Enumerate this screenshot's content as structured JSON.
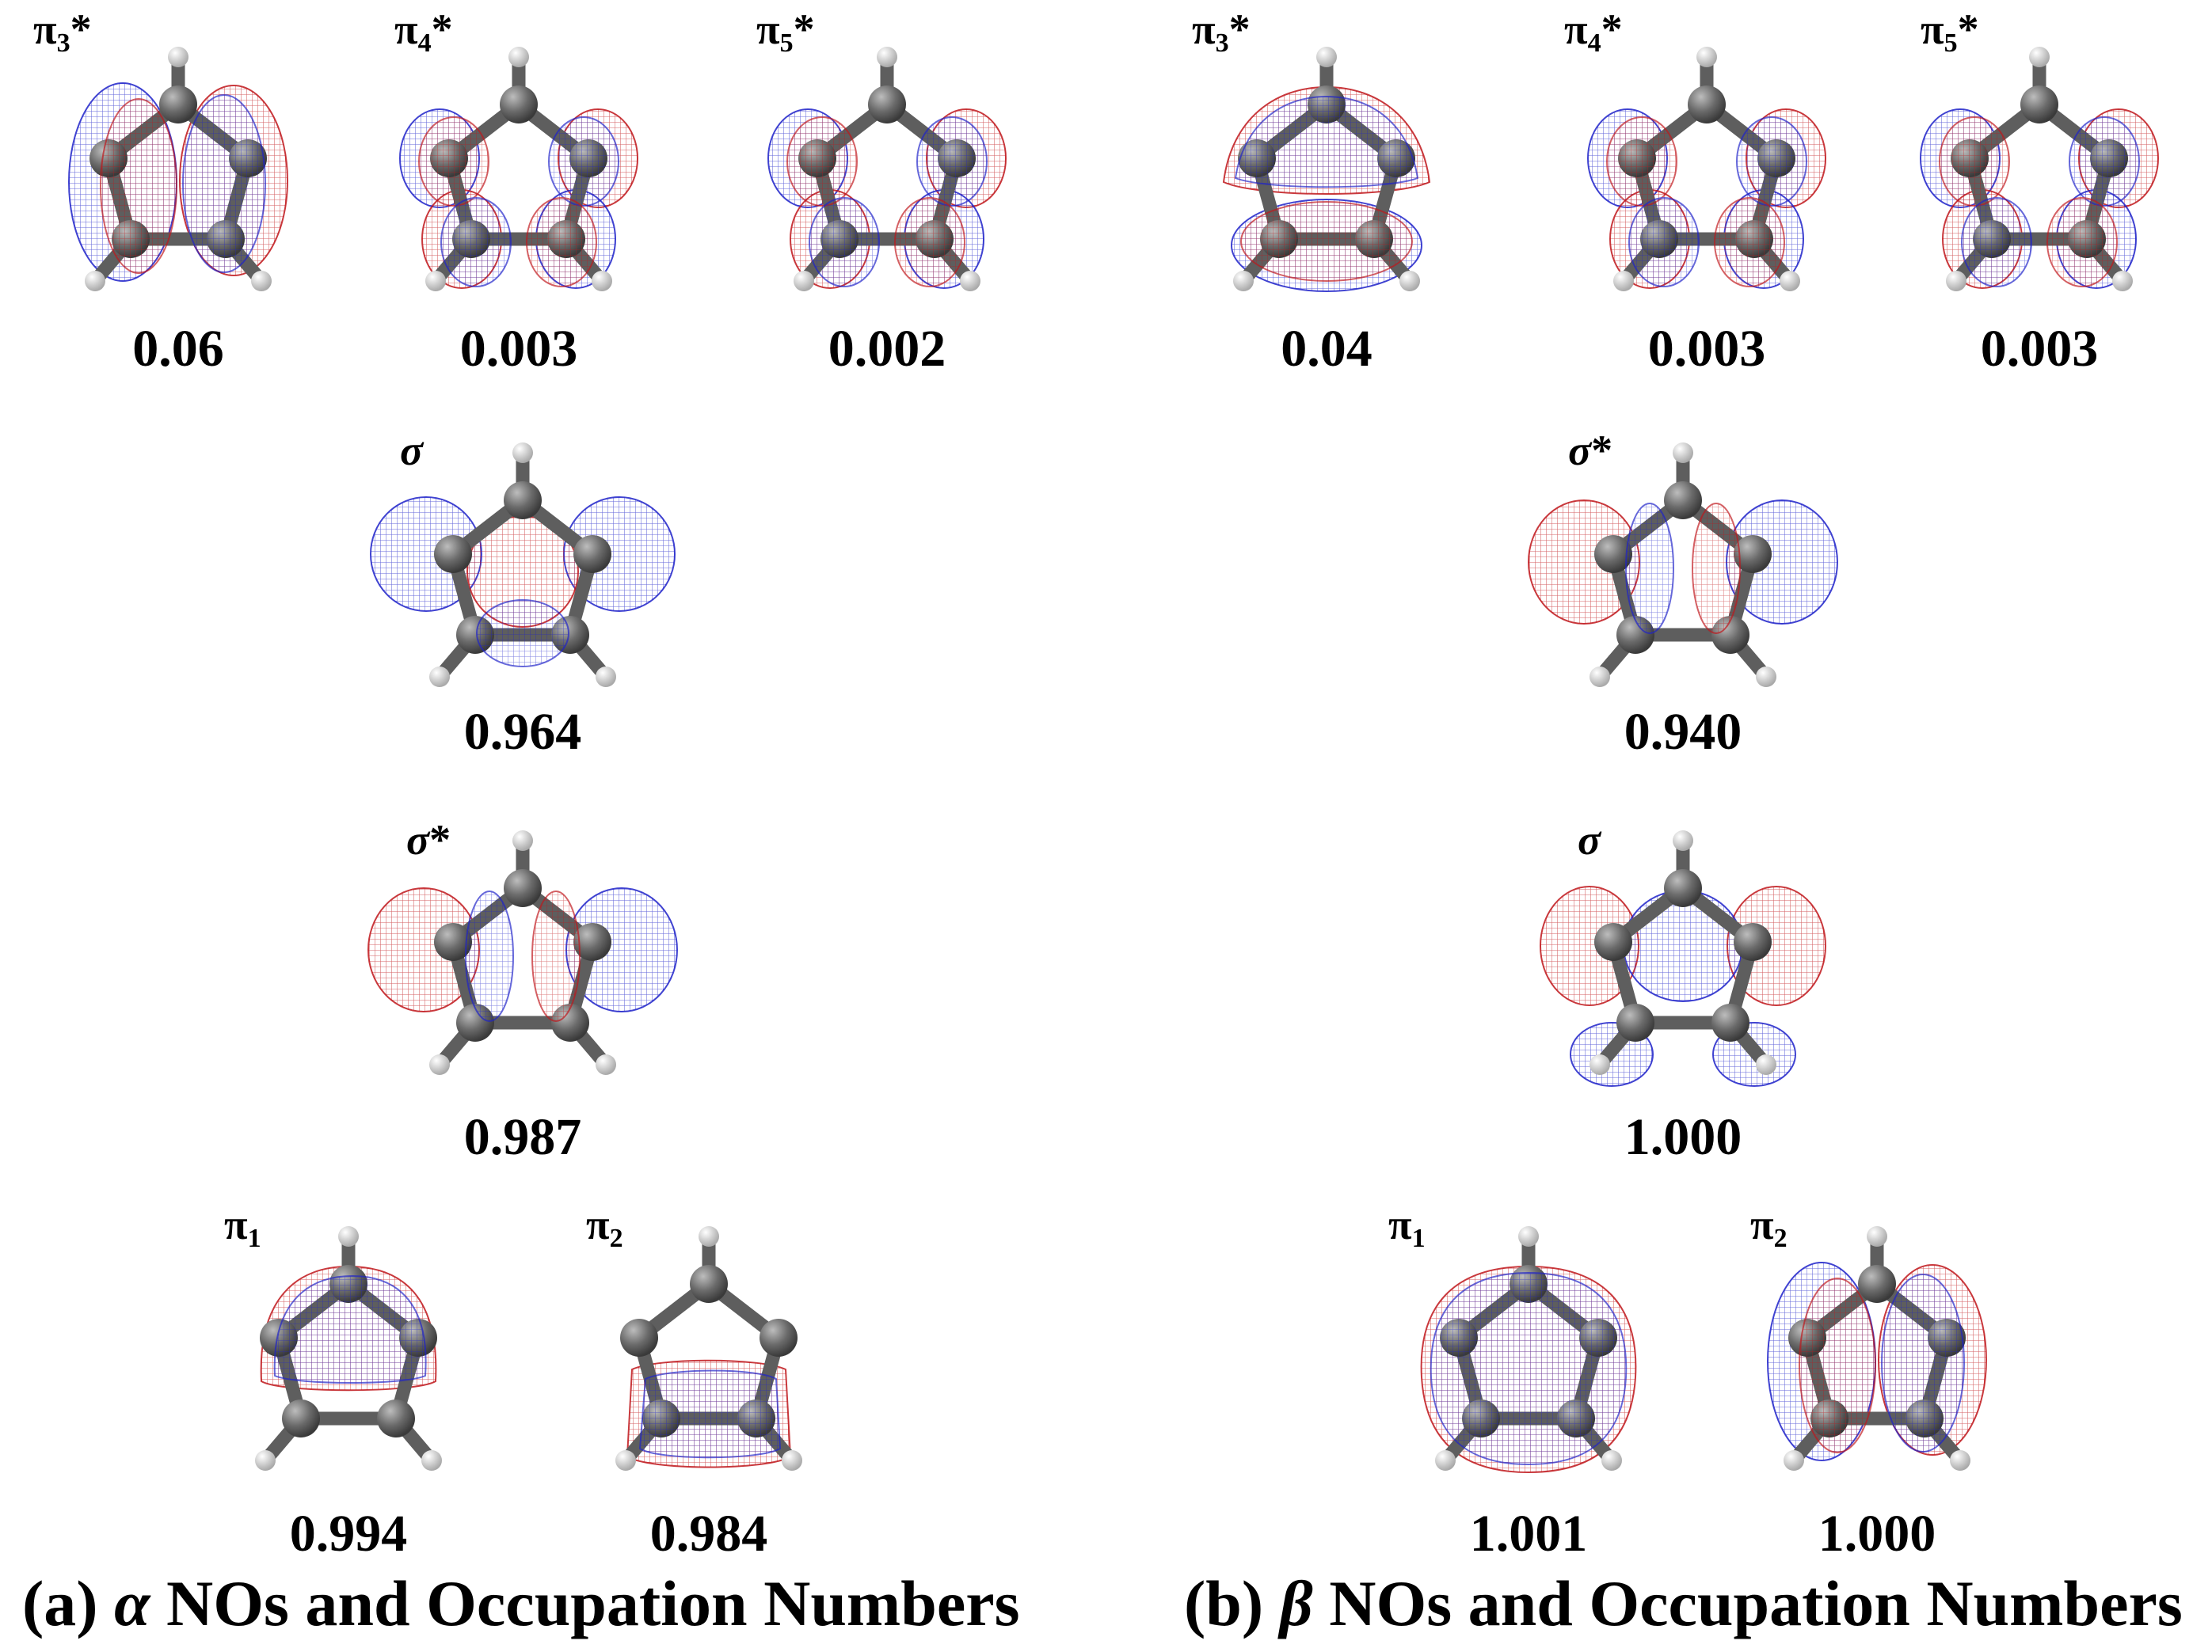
{
  "figure": {
    "colors": {
      "positive_lobe": "#c0161b",
      "negative_lobe": "#1f22c9",
      "carbon": "#6b6b6b",
      "hydrogen": "#f0f0f0"
    },
    "panels": [
      {
        "id": "a",
        "caption_prefix": "(a) ",
        "caption_symbol": "α",
        "caption_suffix": " NOs and Occupation Numbers",
        "orbitals": [
          {
            "id": "a-pi3star",
            "label_base": "π",
            "label_sub": "3",
            "label_sup": "*",
            "occupation": "0.06",
            "lobe_pattern": "vertical-split"
          },
          {
            "id": "a-pi4star",
            "label_base": "π",
            "label_sub": "4",
            "label_sup": "*",
            "occupation": "0.003",
            "lobe_pattern": "atom-lobes"
          },
          {
            "id": "a-pi5star",
            "label_base": "π",
            "label_sub": "5",
            "label_sup": "*",
            "occupation": "0.002",
            "lobe_pattern": "atom-lobes"
          },
          {
            "id": "a-sigma",
            "label_base": "σ",
            "label_sub": "",
            "label_sup": "",
            "occupation": "0.964",
            "lobe_pattern": "sigma-bonding"
          },
          {
            "id": "a-sigmastar",
            "label_base": "σ",
            "label_sub": "",
            "label_sup": "*",
            "occupation": "0.987",
            "lobe_pattern": "sigma-antibonding"
          },
          {
            "id": "a-pi1",
            "label_base": "π",
            "label_sub": "1",
            "label_sup": "",
            "occupation": "0.994",
            "lobe_pattern": "top-cap"
          },
          {
            "id": "a-pi2",
            "label_base": "π",
            "label_sub": "2",
            "label_sup": "",
            "occupation": "0.984",
            "lobe_pattern": "bottom-box"
          }
        ]
      },
      {
        "id": "b",
        "caption_prefix": "(b) ",
        "caption_symbol": "β",
        "caption_suffix": " NOs and Occupation Numbers",
        "orbitals": [
          {
            "id": "b-pi3star",
            "label_base": "π",
            "label_sub": "3",
            "label_sup": "*",
            "occupation": "0.04",
            "lobe_pattern": "top-bottom"
          },
          {
            "id": "b-pi4star",
            "label_base": "π",
            "label_sub": "4",
            "label_sup": "*",
            "occupation": "0.003",
            "lobe_pattern": "atom-lobes"
          },
          {
            "id": "b-pi5star",
            "label_base": "π",
            "label_sub": "5",
            "label_sup": "*",
            "occupation": "0.003",
            "lobe_pattern": "atom-lobes"
          },
          {
            "id": "b-sigmastar",
            "label_base": "σ",
            "label_sub": "",
            "label_sup": "*",
            "occupation": "0.940",
            "lobe_pattern": "sigma-antibonding"
          },
          {
            "id": "b-sigma",
            "label_base": "σ",
            "label_sub": "",
            "label_sup": "",
            "occupation": "1.000",
            "lobe_pattern": "sigma-beta"
          },
          {
            "id": "b-pi1",
            "label_base": "π",
            "label_sub": "1",
            "label_sup": "",
            "occupation": "1.001",
            "lobe_pattern": "ring-cloud"
          },
          {
            "id": "b-pi2",
            "label_base": "π",
            "label_sub": "2",
            "label_sup": "",
            "occupation": "1.000",
            "lobe_pattern": "vertical-split"
          }
        ]
      }
    ]
  }
}
